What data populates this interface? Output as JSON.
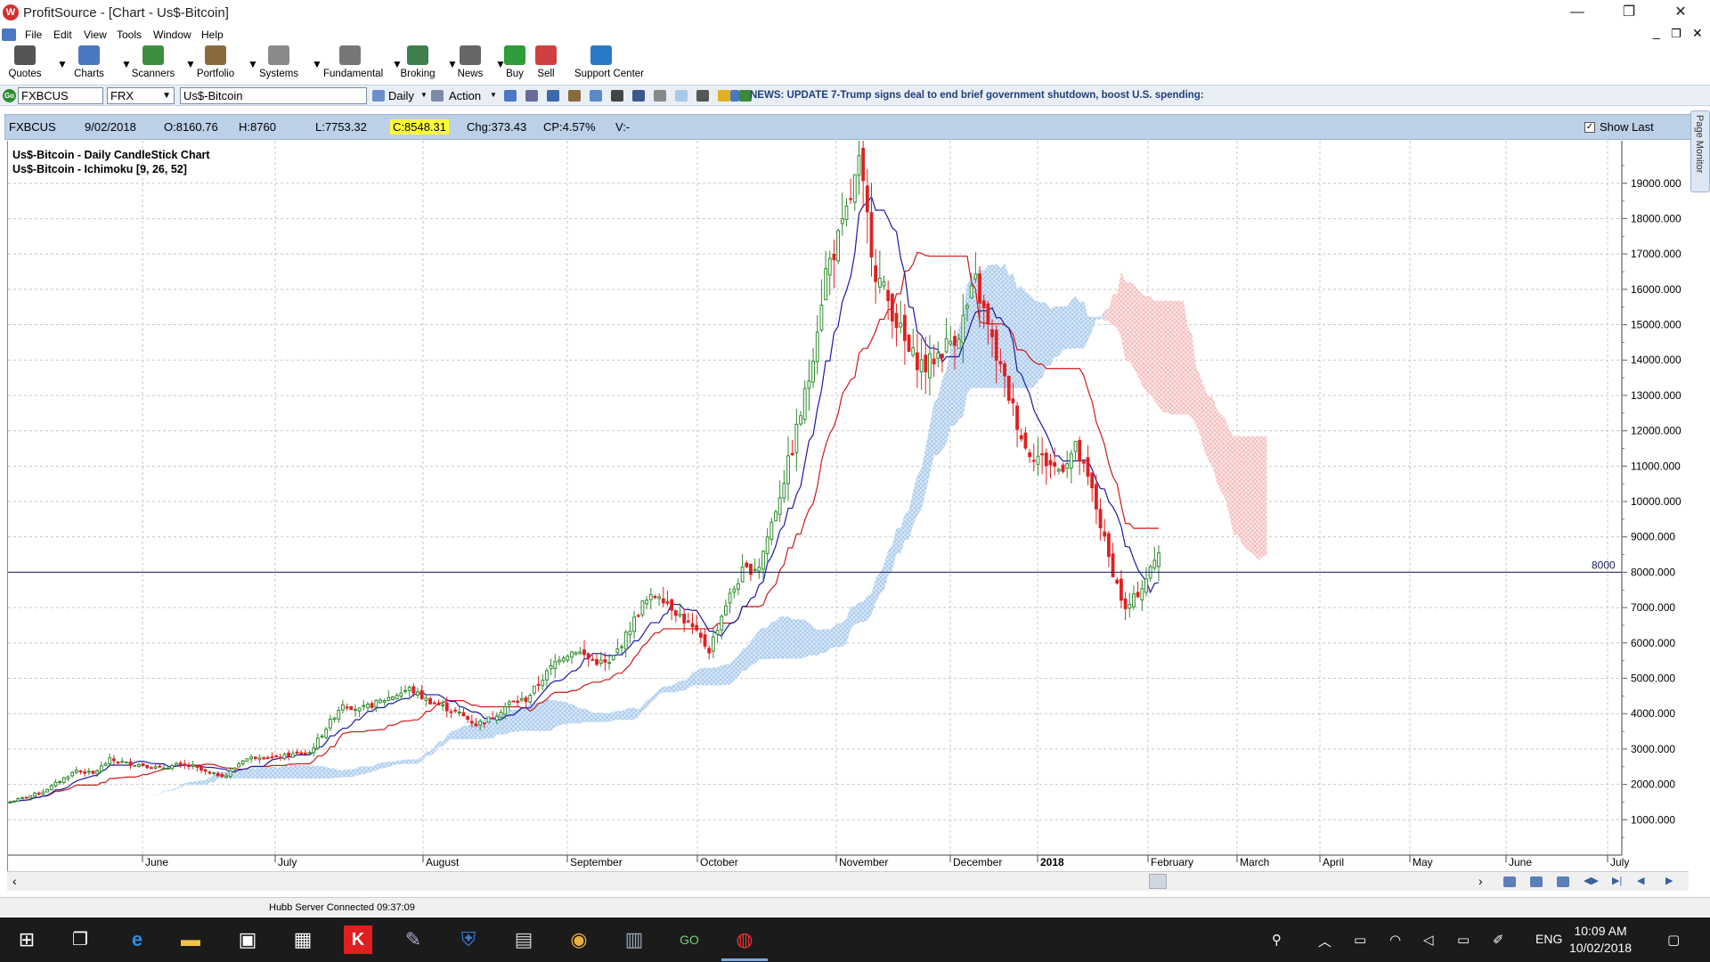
{
  "window": {
    "title": "ProfitSource - [Chart - Us$-Bitcoin]",
    "minimize_glyph": "—",
    "restore_glyph": "❐",
    "close_glyph": "✕"
  },
  "menu": [
    "File",
    "Edit",
    "View",
    "Tools",
    "Window",
    "Help"
  ],
  "toolbar": [
    {
      "label": "Quotes",
      "icon": "quotes-icon",
      "color": "#555555"
    },
    {
      "label": "Charts",
      "icon": "charts-icon",
      "color": "#4a78c2"
    },
    {
      "label": "Scanners",
      "icon": "scanners-icon",
      "color": "#3e8e41"
    },
    {
      "label": "Portfolio",
      "icon": "portfolio-icon",
      "color": "#8b6a3d"
    },
    {
      "label": "Systems",
      "icon": "systems-icon",
      "color": "#8a8a8a"
    },
    {
      "label": "Fundamental",
      "icon": "fundamental-icon",
      "color": "#777777"
    },
    {
      "label": "Broking",
      "icon": "broking-icon",
      "color": "#3f7f4f"
    },
    {
      "label": "News",
      "icon": "news-icon",
      "color": "#666666"
    },
    {
      "label": "Buy",
      "icon": "buy-icon",
      "color": "#2e9d3a"
    },
    {
      "label": "Sell",
      "icon": "sell-icon",
      "color": "#d04040"
    },
    {
      "label": "Support Center",
      "icon": "support-icon",
      "color": "#2a78c8"
    }
  ],
  "symbol_bar": {
    "symbol": "FXBCUS",
    "exchange": "FRX",
    "name": "Us$-Bitcoin",
    "period": "Daily",
    "action": "Action",
    "news": "NEWS: UPDATE 7-Trump signs deal to end brief government shutdown, boost U.S. spending:"
  },
  "chart_header": {
    "symbol": "FXBCUS",
    "date": "9/02/2018",
    "open": "O:8160.76",
    "high": "H:8760",
    "low": "L:7753.32",
    "close": "C:8548.31",
    "change": "Chg:373.43",
    "change_pct": "CP:4.57%",
    "volume": "V:-",
    "show_last": "Show Last",
    "show_last_checked": "✓"
  },
  "page_monitor": "Page Monitor",
  "chart_data": {
    "type": "candlestick",
    "legend": [
      "Us$-Bitcoin - Daily CandleStick Chart",
      "Us$-Bitcoin - Ichimoku [9, 26, 52]"
    ],
    "y_ticks": [
      "1000.000",
      "2000.000",
      "3000.000",
      "4000.000",
      "5000.000",
      "6000.000",
      "7000.000",
      "8000.000",
      "9000.000",
      "10000.000",
      "11000.000",
      "12000.000",
      "13000.000",
      "14000.000",
      "15000.000",
      "16000.000",
      "17000.000",
      "18000.000",
      "19000.000"
    ],
    "ylim": [
      0,
      19800
    ],
    "x_labels": [
      "June",
      "July",
      "August",
      "September",
      "October",
      "November",
      "December",
      "2018",
      "February",
      "March",
      "April",
      "May",
      "June",
      "July"
    ],
    "x_label_bold": "2018",
    "horizontal_line": {
      "value": 8000,
      "label": "8000"
    },
    "colors": {
      "up": "#2e8b2e",
      "down": "#e02020",
      "tenkan": "#1a1aa8",
      "kijun": "#d01818",
      "cloud_bull": "#9ec3ea",
      "cloud_bear": "#f4b4b4"
    },
    "close_path": [
      1500,
      1650,
      1800,
      2100,
      2400,
      2300,
      2700,
      2600,
      2550,
      2450,
      2550,
      2500,
      2300,
      2250,
      2700,
      2800,
      2750,
      2850,
      2900,
      3600,
      4300,
      4100,
      4300,
      4500,
      4700,
      4400,
      4200,
      4000,
      3700,
      3900,
      4300,
      4400,
      5000,
      5600,
      5800,
      5500,
      5400,
      6200,
      7100,
      7400,
      6900,
      6400,
      5800,
      7100,
      8000,
      8200,
      9800,
      11500,
      13500,
      16500,
      17700,
      19500,
      16500,
      15400,
      14200,
      13800,
      14300,
      14800,
      16200,
      14500,
      13000,
      11500,
      11200,
      10900,
      11500,
      10300,
      8400,
      6900,
      7600,
      8548
    ]
  },
  "status": "Hubb Server Connected 09:37:09",
  "taskbar": {
    "lang": "ENG",
    "time": "10:09 AM",
    "date": "10/02/2018"
  }
}
